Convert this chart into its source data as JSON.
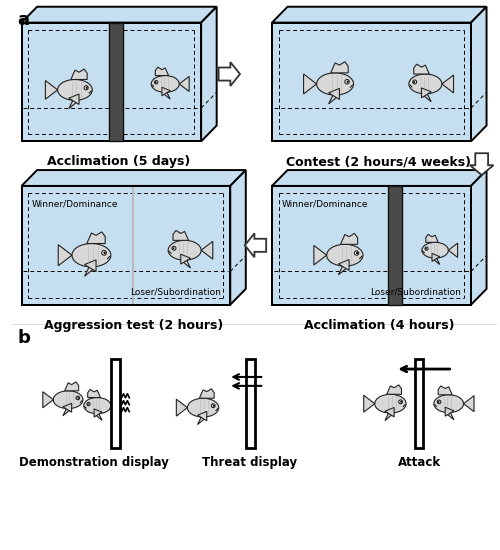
{
  "bg_color": "#ffffff",
  "tank_fill": "#c5dff0",
  "tank_edge": "#000000",
  "divider_dark": "#555555",
  "text_color": "#000000",
  "panel_a_label": "a",
  "panel_b_label": "b",
  "captions": {
    "top_left": "Acclimation (5 days)",
    "top_right": "Contest (2 hours/4 weeks)",
    "bot_left": "Aggression test (2 hours)",
    "bot_right": "Acclimation (4 hours)"
  },
  "b_labels": [
    "Demonstration display",
    "Threat display",
    "Attack"
  ],
  "inner_labels": {
    "winner": "Winner/Dominance",
    "loser": "Loser/Subordination"
  },
  "font_size_caption": 9.0,
  "font_size_inner": 6.5,
  "font_size_panel": 13
}
